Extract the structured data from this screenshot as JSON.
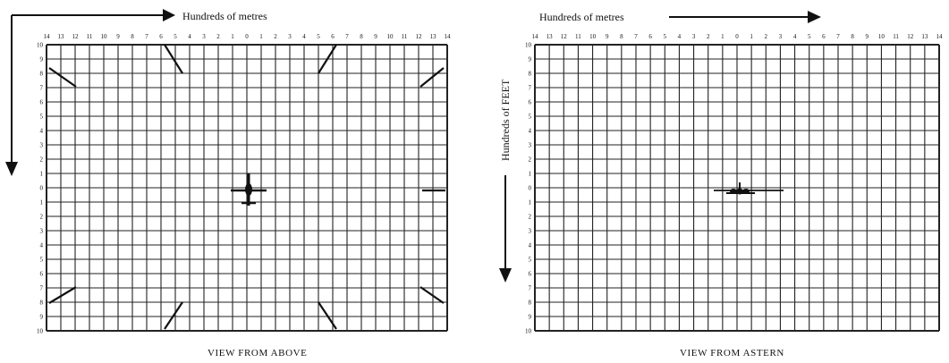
{
  "panels": [
    {
      "caption": "VIEW FROM ABOVE",
      "x_axis_title": "Hundreds of metres",
      "x_ticks": [
        "14",
        "13",
        "12",
        "11",
        "10",
        "9",
        "8",
        "7",
        "6",
        "5",
        "4",
        "3",
        "2",
        "1",
        "0",
        "1",
        "2",
        "3",
        "4",
        "5",
        "6",
        "7",
        "8",
        "9",
        "10",
        "11",
        "12",
        "13",
        "14"
      ],
      "y_ticks": [
        "10",
        "9",
        "8",
        "7",
        "6",
        "5",
        "4",
        "3",
        "2",
        "1",
        "0",
        "1",
        "2",
        "3",
        "4",
        "5",
        "6",
        "7",
        "8",
        "9",
        "10"
      ]
    },
    {
      "caption": "VIEW FROM ASTERN",
      "x_axis_title": "Hundreds of metres",
      "y_axis_title": "Hundreds of FEET",
      "x_ticks": [
        "14",
        "13",
        "12",
        "11",
        "10",
        "9",
        "8",
        "7",
        "6",
        "5",
        "4",
        "3",
        "2",
        "1",
        "0",
        "1",
        "2",
        "3",
        "4",
        "5",
        "6",
        "7",
        "8",
        "9",
        "10",
        "11",
        "12",
        "13",
        "14"
      ],
      "y_ticks": [
        "10",
        "9",
        "8",
        "7",
        "6",
        "5",
        "4",
        "3",
        "2",
        "1",
        "0",
        "1",
        "2",
        "3",
        "4",
        "5",
        "6",
        "7",
        "8",
        "9",
        "10"
      ]
    }
  ],
  "colors": {
    "ink": "#111111",
    "grid": "#222222",
    "paper": "#ffffff"
  },
  "icons": {
    "aircraft_above": "aircraft-top-view-icon",
    "aircraft_astern": "aircraft-rear-view-icon"
  }
}
